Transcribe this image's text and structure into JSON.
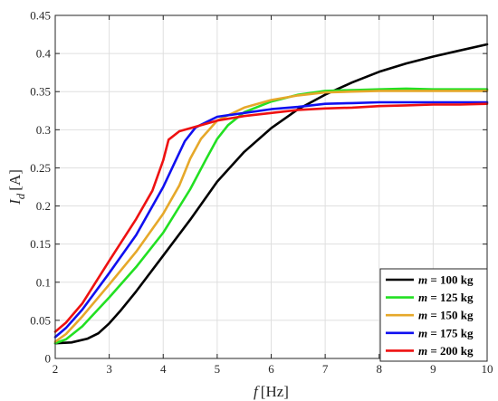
{
  "chart_data": {
    "type": "line",
    "xlabel": "f",
    "xlabel_unit": "[Hz]",
    "ylabel": "I",
    "ylabel_sub": "d",
    "ylabel_unit": "[A]",
    "xlim": [
      2,
      10
    ],
    "ylim": [
      0,
      0.45
    ],
    "xticks": [
      2,
      3,
      4,
      5,
      6,
      7,
      8,
      9,
      10
    ],
    "yticks": [
      0,
      0.05,
      0.1,
      0.15,
      0.2,
      0.25,
      0.3,
      0.35,
      0.4,
      0.45
    ],
    "xtick_labels": [
      "2",
      "3",
      "4",
      "5",
      "6",
      "7",
      "8",
      "9",
      "10"
    ],
    "ytick_labels": [
      "0",
      "0.05",
      "0.1",
      "0.15",
      "0.2",
      "0.25",
      "0.3",
      "0.35",
      "0.4",
      "0.45"
    ],
    "grid": true,
    "legend_position": "bottom-right",
    "series": [
      {
        "name": "m = 100 kg",
        "legend_var": "m",
        "legend_rest": " = 100 kg",
        "color": "#000000",
        "x": [
          2.0,
          2.3,
          2.6,
          2.8,
          3.0,
          3.2,
          3.5,
          4.0,
          4.5,
          5.0,
          5.5,
          6.0,
          6.5,
          7.0,
          7.5,
          8.0,
          8.5,
          9.0,
          9.5,
          10.0
        ],
        "y": [
          0.02,
          0.021,
          0.026,
          0.033,
          0.046,
          0.062,
          0.088,
          0.135,
          0.182,
          0.232,
          0.271,
          0.302,
          0.327,
          0.346,
          0.362,
          0.376,
          0.387,
          0.396,
          0.404,
          0.412
        ]
      },
      {
        "name": "m = 125 kg",
        "legend_var": "m",
        "legend_rest": " = 125 kg",
        "color": "#22e022",
        "x": [
          2.0,
          2.2,
          2.5,
          3.0,
          3.5,
          4.0,
          4.5,
          4.8,
          5.0,
          5.2,
          5.5,
          6.0,
          6.5,
          7.0,
          7.5,
          8.0,
          8.5,
          9.0,
          9.5,
          10.0
        ],
        "y": [
          0.02,
          0.025,
          0.042,
          0.08,
          0.12,
          0.165,
          0.222,
          0.262,
          0.288,
          0.306,
          0.323,
          0.337,
          0.346,
          0.351,
          0.352,
          0.353,
          0.354,
          0.353,
          0.353,
          0.353
        ]
      },
      {
        "name": "m = 150 kg",
        "legend_var": "m",
        "legend_rest": " = 150 kg",
        "color": "#e6a82a",
        "x": [
          2.0,
          2.2,
          2.5,
          3.0,
          3.5,
          4.0,
          4.3,
          4.5,
          4.7,
          5.0,
          5.5,
          6.0,
          6.5,
          7.0,
          7.5,
          8.0,
          8.5,
          9.0,
          9.5,
          10.0
        ],
        "y": [
          0.022,
          0.032,
          0.055,
          0.097,
          0.14,
          0.19,
          0.227,
          0.262,
          0.288,
          0.312,
          0.329,
          0.339,
          0.345,
          0.349,
          0.35,
          0.351,
          0.351,
          0.351,
          0.351,
          0.351
        ]
      },
      {
        "name": "m = 175 kg",
        "legend_var": "m",
        "legend_rest": " = 175 kg",
        "color": "#1010f0",
        "x": [
          2.0,
          2.2,
          2.5,
          3.0,
          3.5,
          4.0,
          4.2,
          4.4,
          4.6,
          4.8,
          5.0,
          5.5,
          6.0,
          6.5,
          7.0,
          7.5,
          8.0,
          8.5,
          9.0,
          9.5,
          10.0
        ],
        "y": [
          0.028,
          0.04,
          0.064,
          0.112,
          0.162,
          0.225,
          0.255,
          0.285,
          0.303,
          0.31,
          0.317,
          0.322,
          0.327,
          0.33,
          0.334,
          0.335,
          0.336,
          0.336,
          0.336,
          0.336,
          0.336
        ]
      },
      {
        "name": "m = 200 kg",
        "legend_var": "m",
        "legend_rest": " = 200 kg",
        "color": "#ee1111",
        "x": [
          2.0,
          2.2,
          2.5,
          3.0,
          3.5,
          3.8,
          4.0,
          4.1,
          4.3,
          4.6,
          5.0,
          5.5,
          6.0,
          6.5,
          7.0,
          7.5,
          8.0,
          8.5,
          9.0,
          9.5,
          10.0
        ],
        "y": [
          0.035,
          0.047,
          0.072,
          0.128,
          0.183,
          0.22,
          0.26,
          0.287,
          0.298,
          0.304,
          0.312,
          0.318,
          0.322,
          0.326,
          0.328,
          0.329,
          0.331,
          0.332,
          0.333,
          0.333,
          0.334
        ]
      }
    ]
  }
}
